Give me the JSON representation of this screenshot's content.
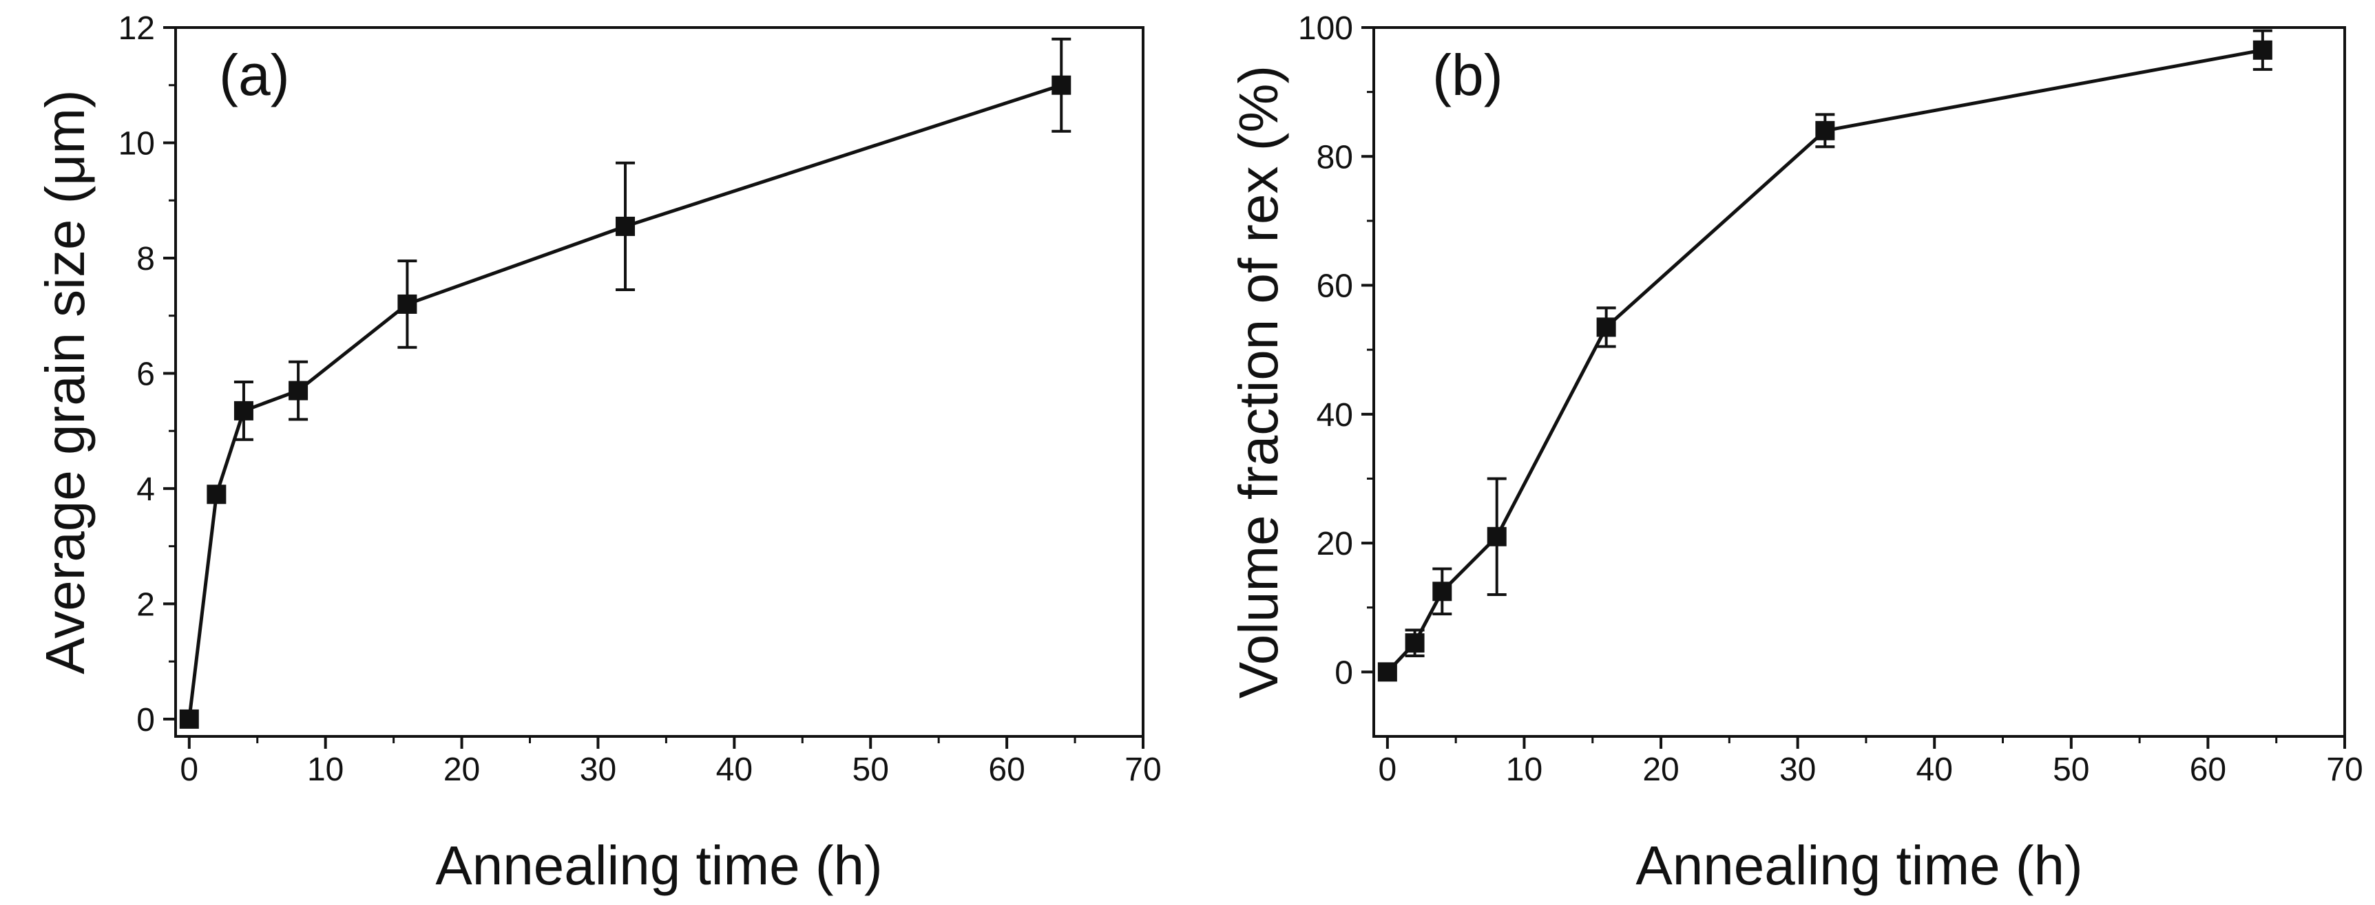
{
  "figure": {
    "panels": [
      "a",
      "b"
    ]
  },
  "chart_data": [
    {
      "type": "line",
      "panel_label": "(a)",
      "title": "",
      "xlabel": "Annealing time (h)",
      "ylabel": "Average grain size (μm)",
      "xlim": [
        -1,
        70
      ],
      "ylim": [
        -0.3,
        12
      ],
      "xticks": [
        0,
        10,
        20,
        30,
        40,
        50,
        60,
        70
      ],
      "yticks": [
        0,
        2,
        4,
        6,
        8,
        10,
        12
      ],
      "xtick_labels": [
        "0",
        "10",
        "20",
        "30",
        "40",
        "50",
        "60",
        "70"
      ],
      "ytick_labels": [
        "0",
        "2",
        "4",
        "6",
        "8",
        "10",
        "12"
      ],
      "marker": "square",
      "series": [
        {
          "name": "Average grain size",
          "x": [
            0,
            2,
            4,
            8,
            16,
            32,
            64
          ],
          "y": [
            0,
            3.9,
            5.35,
            5.7,
            7.2,
            8.55,
            11.0
          ],
          "yerr": [
            0,
            0,
            0.5,
            0.5,
            0.75,
            1.1,
            0.8
          ]
        }
      ]
    },
    {
      "type": "line",
      "panel_label": "(b)",
      "title": "",
      "xlabel": "Annealing time (h)",
      "ylabel": "Volume fraction of rex (%)",
      "xlim": [
        -1,
        70
      ],
      "ylim": [
        -10,
        100
      ],
      "xticks": [
        0,
        10,
        20,
        30,
        40,
        50,
        60,
        70
      ],
      "yticks": [
        0,
        20,
        40,
        60,
        80,
        100
      ],
      "xtick_labels": [
        "0",
        "10",
        "20",
        "30",
        "40",
        "50",
        "60",
        "70"
      ],
      "ytick_labels": [
        "0",
        "20",
        "40",
        "60",
        "80",
        "100"
      ],
      "marker": "square",
      "series": [
        {
          "name": "Volume fraction of rex",
          "x": [
            0,
            2,
            4,
            8,
            16,
            32,
            64
          ],
          "y": [
            0,
            4.5,
            12.5,
            21,
            53.5,
            84,
            96.5
          ],
          "yerr": [
            0,
            2,
            3.5,
            9,
            3,
            2.5,
            3
          ]
        }
      ]
    }
  ]
}
